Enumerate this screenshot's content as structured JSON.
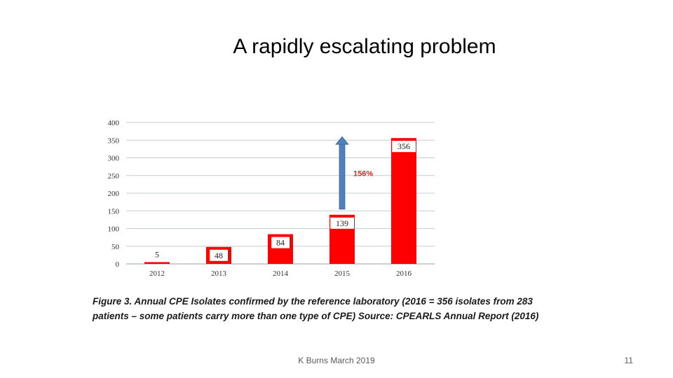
{
  "slide": {
    "title": "A rapidly escalating problem",
    "footer": "K Burns March 2019",
    "page_number": "11"
  },
  "caption": {
    "figure_label": "Figure 3. Annual CPE Isolates confirmed by the reference laboratory (2016 = 356 isolates from 283 patients – some patients carry more than one type of CPE) ",
    "source": "Source: CPEARLS Annual Report (2016)"
  },
  "chart_data": {
    "type": "bar",
    "categories": [
      "2012",
      "2013",
      "2014",
      "2015",
      "2016"
    ],
    "values": [
      5,
      48,
      84,
      139,
      356
    ],
    "value_labels": [
      "5",
      "48",
      "84",
      "139",
      "356"
    ],
    "ylim": [
      0,
      400
    ],
    "yticks": [
      "0",
      "50",
      "100",
      "150",
      "200",
      "250",
      "300",
      "350",
      "400"
    ],
    "grid": true,
    "bar_color": "#ff0000",
    "annotation": {
      "text": "156%",
      "from_category": "2015",
      "arrow_from_value": 139,
      "arrow_to_value": 356,
      "color": "#e8211d",
      "arrow_color": "#4f81bd"
    }
  }
}
